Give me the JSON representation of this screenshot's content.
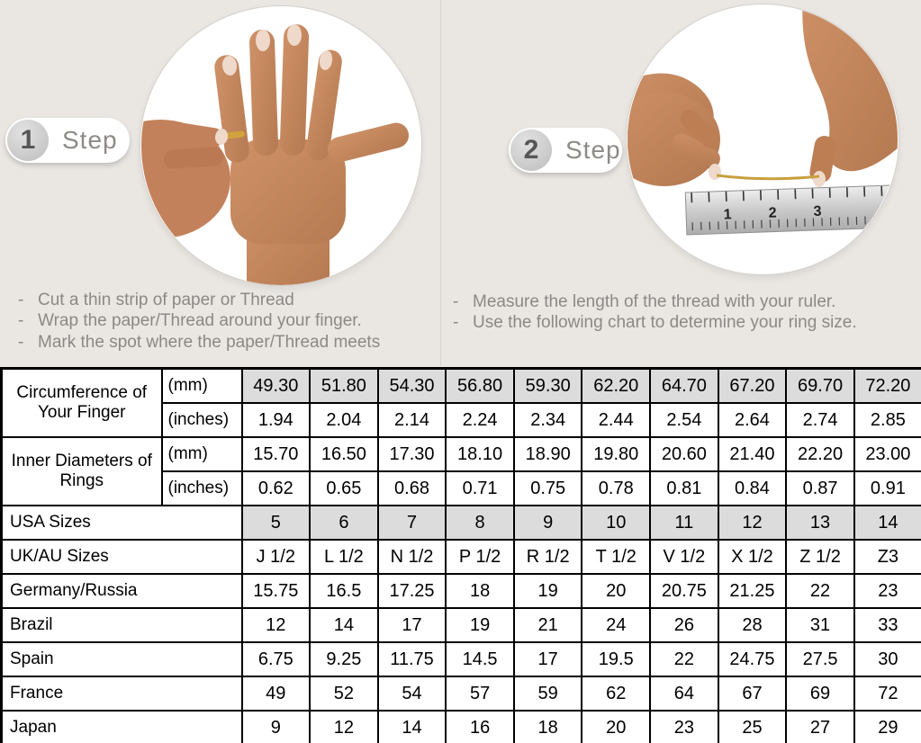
{
  "colors": {
    "page_background": "#eae7e3",
    "shaded_cell": "#dcdcdc",
    "table_border": "#000000",
    "muted_text": "#8b8885",
    "gold_thread": "#c8a03e"
  },
  "steps": [
    {
      "number": "1",
      "label": "Step",
      "bullet": "-",
      "image_alt": "hand-with-thread-ring-photo",
      "instructions": [
        "Cut a thin strip of paper or Thread",
        "Wrap the paper/Thread around your finger.",
        "Mark the spot where the paper/Thread meets"
      ]
    },
    {
      "number": "2",
      "label": "Step",
      "bullet": "-",
      "image_alt": "hands-measuring-thread-with-ruler-photo",
      "instructions": [
        "Measure the length of the thread with your ruler.",
        "Use the following chart to determine your ring size."
      ],
      "ruler_numbers": [
        "1",
        "2",
        "3"
      ]
    }
  ],
  "size_chart": {
    "groups": [
      {
        "label": "Circumference of Your Finger",
        "sub": [
          {
            "unit": "(mm)",
            "shaded": true,
            "values": [
              "49.30",
              "51.80",
              "54.30",
              "56.80",
              "59.30",
              "62.20",
              "64.70",
              "67.20",
              "69.70",
              "72.20"
            ]
          },
          {
            "unit": "(inches)",
            "shaded": false,
            "values": [
              "1.94",
              "2.04",
              "2.14",
              "2.24",
              "2.34",
              "2.44",
              "2.54",
              "2.64",
              "2.74",
              "2.85"
            ]
          }
        ]
      },
      {
        "label": "Inner Diameters of Rings",
        "sub": [
          {
            "unit": "(mm)",
            "shaded": false,
            "values": [
              "15.70",
              "16.50",
              "17.30",
              "18.10",
              "18.90",
              "19.80",
              "20.60",
              "21.40",
              "22.20",
              "23.00"
            ]
          },
          {
            "unit": "(inches)",
            "shaded": false,
            "values": [
              "0.62",
              "0.65",
              "0.68",
              "0.71",
              "0.75",
              "0.78",
              "0.81",
              "0.84",
              "0.87",
              "0.91"
            ]
          }
        ]
      }
    ],
    "rows": [
      {
        "label": "USA Sizes",
        "shaded": true,
        "values": [
          "5",
          "6",
          "7",
          "8",
          "9",
          "10",
          "11",
          "12",
          "13",
          "14"
        ]
      },
      {
        "label": "UK/AU Sizes",
        "shaded": false,
        "values": [
          "J 1/2",
          "L 1/2",
          "N 1/2",
          "P 1/2",
          "R 1/2",
          "T 1/2",
          "V 1/2",
          "X 1/2",
          "Z 1/2",
          "Z3"
        ]
      },
      {
        "label": "Germany/Russia",
        "shaded": false,
        "values": [
          "15.75",
          "16.5",
          "17.25",
          "18",
          "19",
          "20",
          "20.75",
          "21.25",
          "22",
          "23"
        ]
      },
      {
        "label": "Brazil",
        "shaded": false,
        "values": [
          "12",
          "14",
          "17",
          "19",
          "21",
          "24",
          "26",
          "28",
          "31",
          "33"
        ]
      },
      {
        "label": "Spain",
        "shaded": false,
        "values": [
          "6.75",
          "9.25",
          "11.75",
          "14.5",
          "17",
          "19.5",
          "22",
          "24.75",
          "27.5",
          "30"
        ]
      },
      {
        "label": "France",
        "shaded": false,
        "values": [
          "49",
          "52",
          "54",
          "57",
          "59",
          "62",
          "64",
          "67",
          "69",
          "72"
        ]
      },
      {
        "label": "Japan",
        "shaded": false,
        "values": [
          "9",
          "12",
          "14",
          "16",
          "18",
          "20",
          "23",
          "25",
          "27",
          "29"
        ]
      }
    ]
  }
}
